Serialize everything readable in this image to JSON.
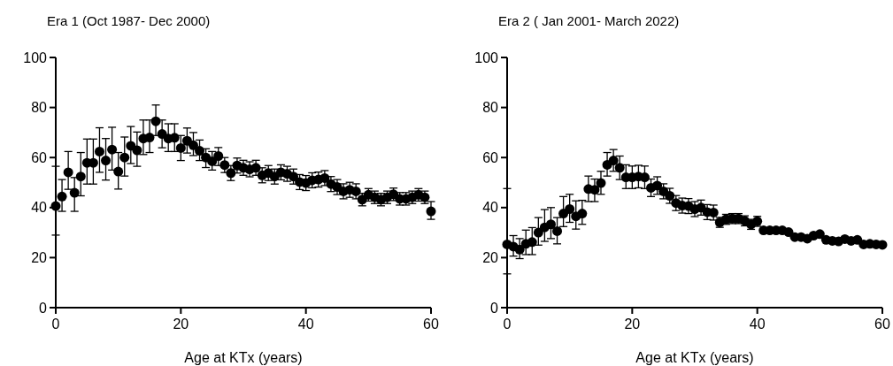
{
  "chart_data": [
    {
      "type": "scatter",
      "title": "Era 1 (Oct 1987- Dec 2000)",
      "xlabel": "Age at KTx (years)",
      "marker": "circle",
      "grid": false,
      "color": "#000000",
      "x": [
        0,
        1,
        2,
        3,
        4,
        5,
        6,
        7,
        8,
        9,
        10,
        11,
        12,
        13,
        14,
        15,
        16,
        17,
        18,
        19,
        20,
        21,
        22,
        23,
        24,
        25,
        26,
        27,
        28,
        29,
        30,
        31,
        32,
        33,
        34,
        35,
        36,
        37,
        38,
        39,
        40,
        41,
        42,
        43,
        44,
        45,
        46,
        47,
        48,
        49,
        50,
        51,
        52,
        53,
        54,
        55,
        56,
        57,
        58,
        59,
        60
      ],
      "values": [
        40.6,
        44.4,
        54.1,
        45.9,
        52.4,
        57.9,
        57.9,
        62.4,
        58.8,
        63.2,
        54.4,
        60,
        64.7,
        62.9,
        67.6,
        68,
        74.5,
        69.4,
        67.6,
        67.9,
        63.8,
        66.7,
        64.9,
        62.7,
        60,
        58.5,
        60.6,
        57,
        53.8,
        56.8,
        55.9,
        55.3,
        55.9,
        52.9,
        53.8,
        52.4,
        54.1,
        53.5,
        52.4,
        50.2,
        49.8,
        50.9,
        51.2,
        51.8,
        49.4,
        48.2,
        46.5,
        47.1,
        46.5,
        43.2,
        45.1,
        44.1,
        43.2,
        44.1,
        45.3,
        43.5,
        43.5,
        44.1,
        45.1,
        44.1,
        38.5
      ],
      "errors": [
        [
          29,
          56.5
        ],
        [
          38.5,
          51.2
        ],
        [
          47.3,
          62.4
        ],
        [
          38.5,
          52
        ],
        [
          44.7,
          62
        ],
        [
          49.4,
          67.4
        ],
        [
          49.4,
          67.4
        ],
        [
          54.1,
          71.9
        ],
        [
          51,
          67.6
        ],
        [
          55,
          72.1
        ],
        [
          47.4,
          62
        ],
        [
          52.6,
          68.2
        ],
        [
          57.6,
          72.4
        ],
        [
          56.5,
          70.2
        ],
        [
          61.2,
          75
        ],
        [
          62,
          75
        ],
        [
          68.8,
          81
        ],
        [
          63.9,
          75
        ],
        [
          62.4,
          73.5
        ],
        [
          62.4,
          73.5
        ],
        [
          58.8,
          68.8
        ],
        [
          61.8,
          71.8
        ],
        [
          60.8,
          70
        ],
        [
          58.8,
          67
        ],
        [
          56,
          63.5
        ],
        [
          55,
          62.4
        ],
        [
          56.8,
          64
        ],
        3,
        3,
        3,
        3,
        3,
        3,
        3,
        3,
        3,
        3,
        3,
        3,
        3,
        3,
        3,
        3,
        3,
        3,
        3,
        3,
        3,
        3,
        2.5,
        2.5,
        2.5,
        2.5,
        2.5,
        2.5,
        2.5,
        2.5,
        2.5,
        2.5,
        2.5,
        [
          35.3,
          42.4
        ]
      ],
      "xlim": [
        0,
        60
      ],
      "xticks": [
        0,
        20,
        40,
        60
      ],
      "ylim": [
        0,
        100
      ],
      "yticks": [
        0,
        20,
        40,
        60,
        80,
        100
      ]
    },
    {
      "type": "scatter",
      "title": "Era 2 ( Jan 2001- March 2022)",
      "xlabel": "Age at KTx (years)",
      "marker": "circle",
      "grid": false,
      "color": "#000000",
      "x": [
        0,
        1,
        2,
        3,
        4,
        5,
        6,
        7,
        8,
        9,
        10,
        11,
        12,
        13,
        14,
        15,
        16,
        17,
        18,
        19,
        20,
        21,
        22,
        23,
        24,
        25,
        26,
        27,
        28,
        29,
        30,
        31,
        32,
        33,
        34,
        35,
        36,
        37,
        38,
        39,
        40,
        41,
        42,
        43,
        44,
        45,
        46,
        47,
        48,
        49,
        50,
        51,
        52,
        53,
        54,
        55,
        56,
        57,
        58,
        59,
        60
      ],
      "values": [
        25.3,
        24.4,
        23.2,
        25.5,
        26.2,
        30,
        32.1,
        33.3,
        30.6,
        37.6,
        39.4,
        36.5,
        37.6,
        47.4,
        47.1,
        49.8,
        57.1,
        58.8,
        55.9,
        52.1,
        52.1,
        52.4,
        52.1,
        47.9,
        48.8,
        46.5,
        44.7,
        41.8,
        40.8,
        40.6,
        39.4,
        40,
        38.2,
        38,
        34.1,
        35.3,
        35.6,
        35.6,
        34.7,
        33.3,
        34.5,
        30.9,
        30.9,
        30.9,
        30.9,
        30.2,
        28.2,
        28.2,
        27.6,
        28.8,
        29.4,
        27.1,
        26.7,
        26.5,
        27.4,
        26.7,
        27.1,
        25.3,
        25.5,
        25.3,
        25.1
      ],
      "errors": [
        [
          13.5,
          47.6
        ],
        [
          20.6,
          28.8
        ],
        [
          19.6,
          27.6
        ],
        [
          21.2,
          31
        ],
        [
          21.2,
          32
        ],
        [
          25,
          36
        ],
        [
          26.5,
          39.2
        ],
        [
          27.6,
          40
        ],
        [
          25.5,
          36
        ],
        [
          32.4,
          44.4
        ],
        [
          34.1,
          45.3
        ],
        [
          31.4,
          42.7
        ],
        [
          33.3,
          42.9
        ],
        [
          42.4,
          52.6
        ],
        [
          42.4,
          51.4
        ],
        [
          45.3,
          54.5
        ],
        [
          52.6,
          62
        ],
        [
          54.5,
          63.2
        ],
        [
          51.2,
          60.6
        ],
        [
          47.6,
          57.1
        ],
        4.5,
        4.5,
        4.5,
        3.5,
        3.5,
        3,
        3,
        3,
        3,
        3,
        3,
        3,
        3,
        3,
        2,
        2,
        2,
        2,
        2,
        2,
        2,
        null,
        null,
        null,
        null,
        null,
        null,
        null,
        null,
        null,
        null,
        null,
        null,
        null,
        null,
        null,
        null,
        null,
        null,
        null,
        null
      ],
      "xlim": [
        0,
        60
      ],
      "xticks": [
        0,
        20,
        40,
        60
      ],
      "ylim": [
        0,
        100
      ],
      "yticks": [
        0,
        20,
        40,
        60,
        80,
        100
      ]
    }
  ]
}
